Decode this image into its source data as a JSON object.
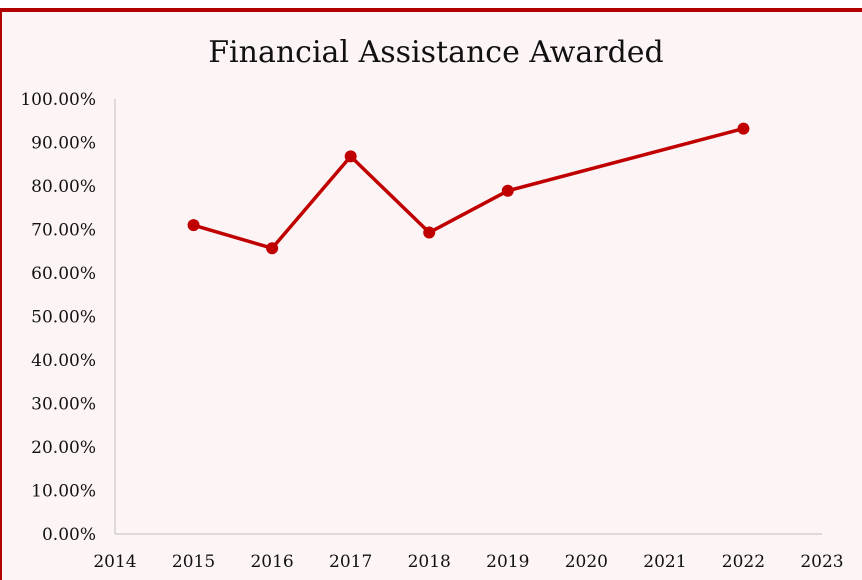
{
  "chart_data": {
    "type": "line",
    "title": "Financial Assistance Awarded",
    "xlabel": "",
    "ylabel": "",
    "x": [
      2015,
      2016,
      2017,
      2018,
      2019,
      2022
    ],
    "values": [
      71.0,
      65.7,
      86.8,
      69.3,
      78.9,
      93.2
    ],
    "xlim": [
      2014,
      2023
    ],
    "ylim": [
      0,
      100
    ],
    "x_ticks": [
      "2014",
      "2015",
      "2016",
      "2017",
      "2018",
      "2019",
      "2020",
      "2021",
      "2022",
      "2023"
    ],
    "y_ticks": [
      "0.00%",
      "10.00%",
      "20.00%",
      "30.00%",
      "40.00%",
      "50.00%",
      "60.00%",
      "70.00%",
      "80.00%",
      "90.00%",
      "100.00%"
    ],
    "grid": false,
    "legend": "none",
    "colors": {
      "line": "#c00000",
      "marker": "#c00000",
      "axis": "#bfbfbf",
      "border": "#b00000",
      "background": "#fdf5f5"
    }
  }
}
